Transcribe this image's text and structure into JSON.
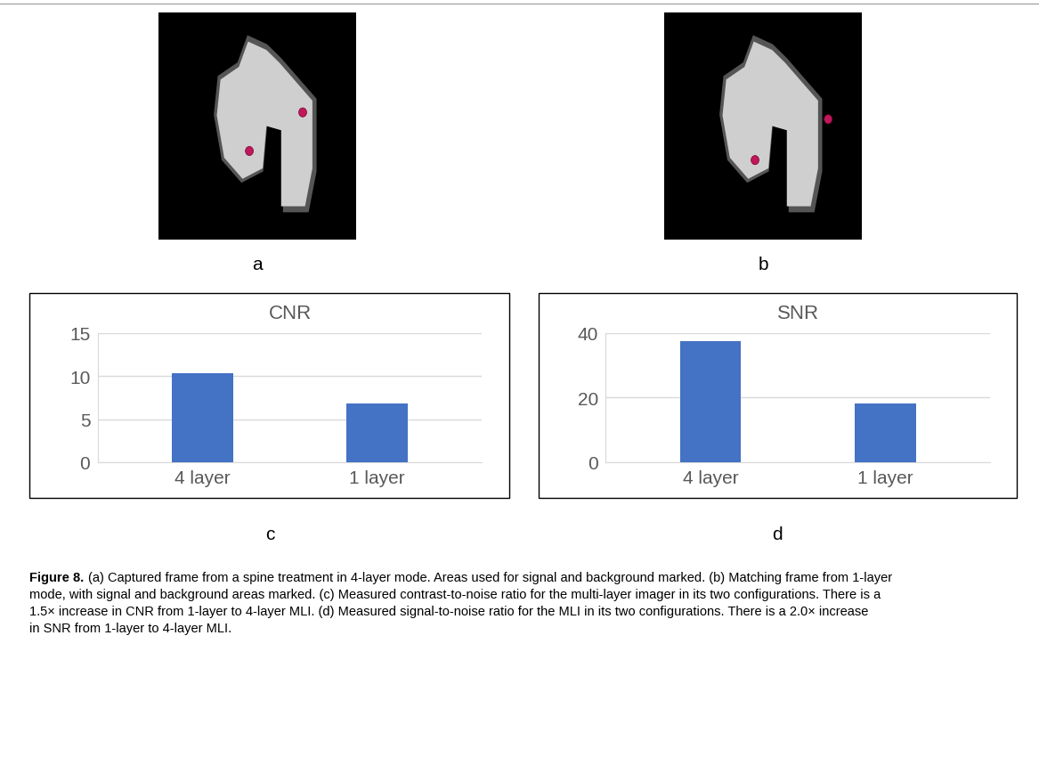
{
  "panel_labels": [
    "a",
    "b",
    "c",
    "d"
  ],
  "chart_data": [
    {
      "type": "bar",
      "title": "CNR",
      "categories": [
        "4 layer",
        "1 layer"
      ],
      "values": [
        10.3,
        6.8
      ],
      "color": "#4472c4",
      "ylim": [
        0,
        15
      ],
      "yticks": [
        0,
        5,
        10,
        15
      ],
      "grid": true
    },
    {
      "type": "bar",
      "title": "SNR",
      "categories": [
        "4 layer",
        "1 layer"
      ],
      "values": [
        37.5,
        18.3
      ],
      "color": "#4472c4",
      "ylim": [
        0,
        40
      ],
      "yticks": [
        0,
        20,
        40
      ],
      "grid": true
    }
  ],
  "caption": {
    "label": "Figure 8.",
    "text": "(a) Captured frame from a spine treatment in 4-layer mode. Areas used for signal and background marked. (b) Matching frame from 1-layer mode, with signal and background areas marked. (c) Measured contrast-to-noise ratio for the multi-layer imager in its two configurations. There is a 1.5× increase in CNR from 1-layer to 4-layer MLI. (d) Measured signal-to-noise ratio for the MLI in its two configurations. There is a 2.0× increase in SNR from 1-layer to 4-layer MLI."
  }
}
